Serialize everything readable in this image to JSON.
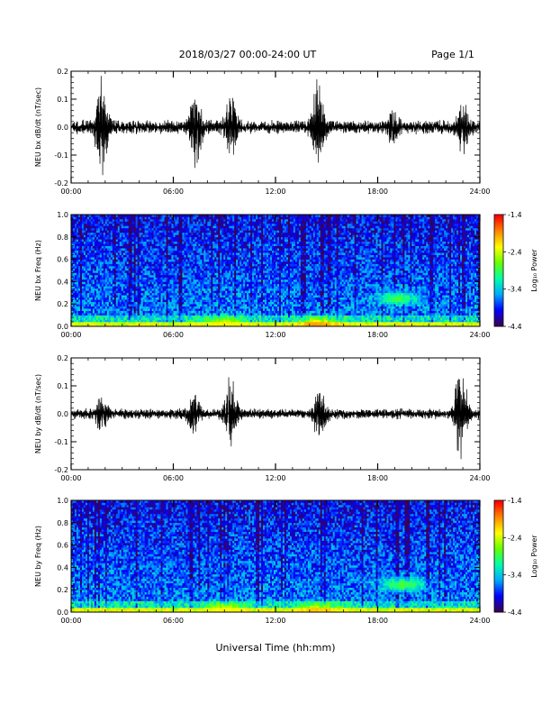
{
  "header": {
    "title": "2018/03/27  00:00-24:00 UT",
    "page": "Page 1/1"
  },
  "xaxis": {
    "label": "Universal Time (hh:mm)",
    "ticks": [
      "00:00",
      "06:00",
      "12:00",
      "18:00",
      "24:00"
    ],
    "range_hours": [
      0,
      24
    ]
  },
  "colorbar": {
    "label": "Log₁₀ Power",
    "ticks": [
      "-1.4",
      "-2.4",
      "-3.4",
      "-4.4"
    ],
    "range": [
      -4.4,
      -1.4
    ],
    "colormap": [
      "#3a0050",
      "#0000ff",
      "#00aaff",
      "#00ffaa",
      "#66ff00",
      "#ffff00",
      "#ff8800",
      "#ff0000"
    ]
  },
  "chart_data": [
    {
      "type": "line",
      "ylabel": "NEU bx dB/dt (nT/sec)",
      "ylim": [
        -0.2,
        0.2
      ],
      "yticks": [
        "0.2",
        "0.1",
        "0.0",
        "-0.1",
        "-0.2"
      ],
      "base_amplitude": 0.02,
      "bursts": [
        {
          "t": 1.8,
          "amp": 0.2
        },
        {
          "t": 7.3,
          "amp": 0.17
        },
        {
          "t": 9.4,
          "amp": 0.12
        },
        {
          "t": 14.5,
          "amp": 0.18
        },
        {
          "t": 18.9,
          "amp": 0.06
        },
        {
          "t": 23.0,
          "amp": 0.09
        }
      ]
    },
    {
      "type": "heatmap",
      "ylabel": "NEU bx Freq (Hz)",
      "ylim": [
        0.0,
        1.0
      ],
      "yticks": [
        "1.0",
        "0.8",
        "0.6",
        "0.4",
        "0.2",
        "0.0"
      ],
      "zlim": [
        -4.4,
        -1.4
      ],
      "features": [
        {
          "t": 19.2,
          "f": 0.25,
          "level": -2.6
        },
        {
          "t": 14.5,
          "f": 0.02,
          "level": -1.8
        },
        {
          "t": 9.0,
          "f": 0.03,
          "level": -2.2
        }
      ]
    },
    {
      "type": "line",
      "ylabel": "NEU by dB/dt (nT/sec)",
      "ylim": [
        -0.2,
        0.2
      ],
      "yticks": [
        "0.2",
        "0.1",
        "0.0",
        "-0.1",
        "-0.2"
      ],
      "base_amplitude": 0.015,
      "bursts": [
        {
          "t": 1.8,
          "amp": 0.07
        },
        {
          "t": 7.2,
          "amp": 0.07
        },
        {
          "t": 9.4,
          "amp": 0.14
        },
        {
          "t": 14.6,
          "amp": 0.1
        },
        {
          "t": 22.9,
          "amp": 0.19
        }
      ]
    },
    {
      "type": "heatmap",
      "ylabel": "NEU by Freq (Hz)",
      "ylim": [
        0.0,
        1.0
      ],
      "yticks": [
        "1.0",
        "0.8",
        "0.6",
        "0.4",
        "0.2",
        "0.0"
      ],
      "zlim": [
        -4.4,
        -1.4
      ],
      "features": [
        {
          "t": 19.5,
          "f": 0.25,
          "level": -2.5
        },
        {
          "t": 14.5,
          "f": 0.02,
          "level": -2.0
        },
        {
          "t": 9.0,
          "f": 0.03,
          "level": -2.2
        }
      ]
    }
  ]
}
